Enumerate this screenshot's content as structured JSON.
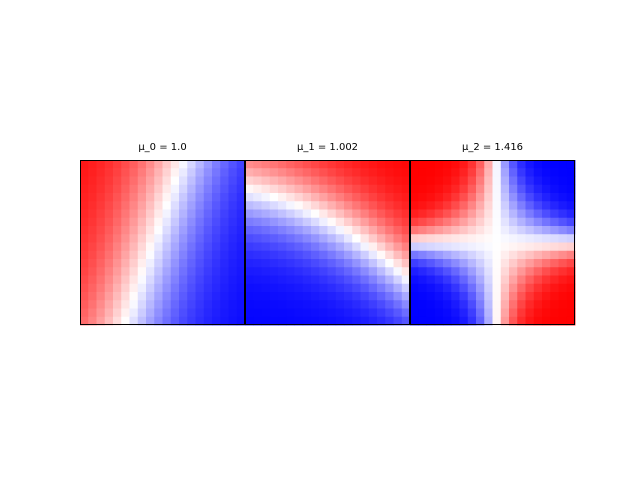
{
  "chart_data": {
    "type": "heatmap",
    "grid_size": 20,
    "colormap": "bwr",
    "colormap_colors": {
      "low": "#0000ff",
      "mid": "#ffffff",
      "high": "#ff0000"
    },
    "value_range": [
      -1,
      1
    ],
    "axes_visible": false,
    "panels": [
      {
        "title": "μ_0 = 1.0",
        "mode": "mu0"
      },
      {
        "title": "μ_1 = 1.002",
        "mode": "mu1"
      },
      {
        "title": "μ_2 = 1.416",
        "mode": "mu2"
      }
    ]
  }
}
